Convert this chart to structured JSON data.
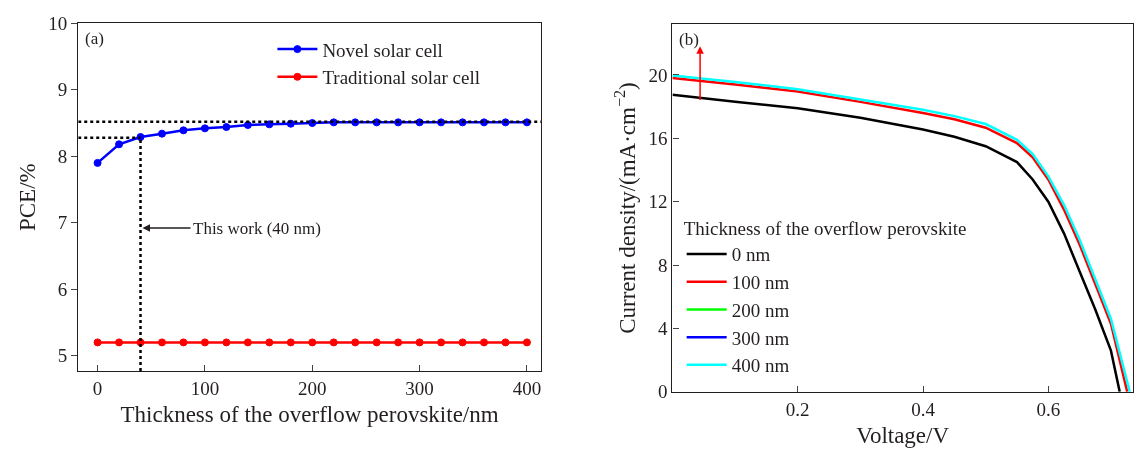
{
  "chart_data": [
    {
      "type": "line",
      "xlabel": "Thickness of the overflow perovskite/nm",
      "ylabel": "PCE/%",
      "x": [
        0,
        20,
        40,
        60,
        80,
        100,
        120,
        140,
        160,
        180,
        200,
        220,
        240,
        260,
        280,
        300,
        320,
        340,
        360,
        380,
        400
      ],
      "series": [
        {
          "name": "Novel solar cell",
          "color": "#0000ff",
          "marker": "circle",
          "line_style": "solid",
          "values": [
            7.9,
            8.18,
            8.29,
            8.34,
            8.39,
            8.42,
            8.44,
            8.47,
            8.48,
            8.49,
            8.5,
            8.51,
            8.51,
            8.51,
            8.51,
            8.51,
            8.51,
            8.51,
            8.51,
            8.51,
            8.51
          ]
        },
        {
          "name": "Traditional solar cell",
          "color": "#ff0000",
          "marker": "circle",
          "line_style": "solid",
          "values": [
            5.2,
            5.2,
            5.2,
            5.2,
            5.2,
            5.2,
            5.2,
            5.2,
            5.2,
            5.2,
            5.2,
            5.2,
            5.2,
            5.2,
            5.2,
            5.2,
            5.2,
            5.2,
            5.2,
            5.2,
            5.2
          ]
        },
        {
          "type": "line",
          "color": "#000000",
          "marker": "none",
          "line_style": "dotted",
          "x": [
            -18,
            413
          ],
          "values": [
            8.52,
            8.52
          ]
        },
        {
          "type": "line",
          "color": "#000000",
          "marker": "none",
          "line_style": "dotted",
          "x": [
            -18,
            40
          ],
          "values": [
            8.28,
            8.28
          ]
        },
        {
          "type": "line",
          "color": "#000000",
          "marker": "none",
          "line_style": "dotted",
          "x": [
            40,
            40
          ],
          "values": [
            4.77,
            8.28
          ]
        }
      ],
      "xlim": [
        -18,
        413
      ],
      "xticks": [
        0,
        100,
        200,
        300,
        400
      ],
      "ylim": [
        4.77,
        10
      ],
      "yticks": [
        5,
        6,
        7,
        8,
        9,
        10
      ],
      "annotations": [
        "(a)",
        {
          "text": "This work (40 nm)",
          "x": 40,
          "y": 6.92
        }
      ],
      "grid": false,
      "legend": "top right"
    },
    {
      "type": "line",
      "xlabel": "Voltage/V",
      "ylabel": "Current density/(mA·cm$^{−2}$)",
      "legend_title": "Thickness of the overflow perovskite",
      "x": [
        0,
        0.1,
        0.2,
        0.3,
        0.4,
        0.45,
        0.5,
        0.55,
        0.575,
        0.6,
        0.625,
        0.65,
        0.675,
        0.7,
        0.73
      ],
      "series": [
        {
          "name": "0 nm",
          "color": "#000000",
          "x": [
            0,
            0.1,
            0.2,
            0.3,
            0.4,
            0.45,
            0.5,
            0.55,
            0.575,
            0.6,
            0.625,
            0.65,
            0.675,
            0.7,
            0.714
          ],
          "values": [
            18.75,
            18.3,
            17.9,
            17.3,
            16.56,
            16.1,
            15.5,
            14.5,
            13.4,
            12.0,
            10.0,
            7.6,
            5.2,
            2.6,
            0
          ]
        },
        {
          "name": "100 nm",
          "color": "#ff0000",
          "x": [
            0,
            0.1,
            0.2,
            0.3,
            0.4,
            0.45,
            0.5,
            0.55,
            0.575,
            0.6,
            0.625,
            0.65,
            0.675,
            0.7,
            0.726
          ],
          "values": [
            19.8,
            19.4,
            18.96,
            18.3,
            17.6,
            17.2,
            16.67,
            15.7,
            14.8,
            13.4,
            11.5,
            9.3,
            6.8,
            4.3,
            0
          ]
        },
        {
          "name": "200 nm",
          "color": "#00ff00",
          "values": [
            null,
            null,
            null,
            null,
            null,
            null,
            null,
            null,
            null,
            null,
            null,
            null,
            null,
            null,
            null
          ]
        },
        {
          "name": "300 nm",
          "color": "#0000ff",
          "values": [
            null,
            null,
            null,
            null,
            null,
            null,
            null,
            null,
            null,
            null,
            null,
            null,
            null,
            null,
            null
          ]
        },
        {
          "name": "400 nm",
          "color": "#00ffff",
          "values": [
            19.96,
            19.55,
            19.1,
            18.45,
            17.8,
            17.4,
            16.9,
            15.9,
            15.0,
            13.6,
            11.8,
            9.6,
            7.1,
            4.6,
            0
          ]
        }
      ],
      "xlim": [
        0,
        0.735
      ],
      "xticks": [
        0.2,
        0.4,
        0.6
      ],
      "ylim": [
        0,
        23.2
      ],
      "yticks": [
        0,
        4,
        8,
        12,
        16,
        20
      ],
      "annotations": [
        "(b)"
      ],
      "grid": false,
      "legend": "bottom left"
    }
  ]
}
